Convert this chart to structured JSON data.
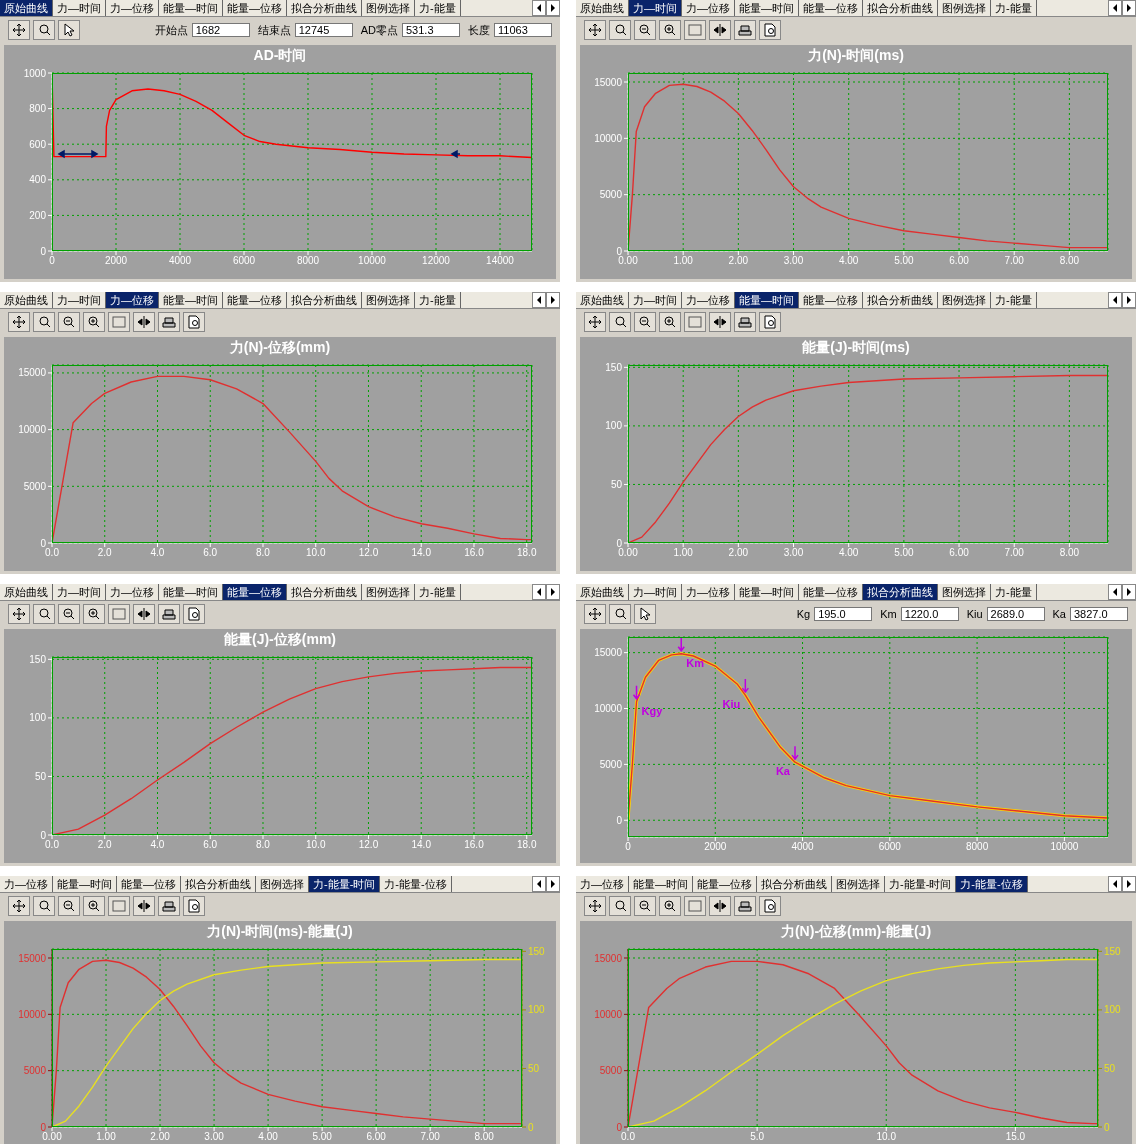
{
  "chart_data": [
    {
      "type": "line",
      "title": "AD-时间",
      "annotations": [
        "原始曲线",
        "力—时间",
        "力—位移",
        "能量—时间",
        "能量—位移",
        "拟合分析曲线",
        "图例选择",
        "力-能量",
        "开始点",
        "1682",
        "结束点",
        "12745",
        "AD零点",
        "531.3",
        "长度",
        "11063"
      ],
      "series": [
        {
          "color": "#ff0000",
          "x": [
            0,
            0,
            60,
            1682,
            1700,
            1800,
            2000,
            2500,
            3000,
            3500,
            4000,
            4500,
            5000,
            5500,
            6000,
            6500,
            7000,
            8000,
            9000,
            10000,
            11000,
            12000,
            13000,
            14000,
            15000
          ],
          "values": [
            0,
            1000,
            530,
            530,
            700,
            790,
            850,
            900,
            910,
            900,
            880,
            840,
            790,
            720,
            650,
            615,
            600,
            580,
            570,
            555,
            545,
            540,
            535,
            535,
            525
          ]
        }
      ],
      "xlim": [
        0,
        15000
      ],
      "xticks": [
        0,
        2000,
        4000,
        6000,
        8000,
        10000,
        12000,
        14000
      ],
      "ylim": [
        0,
        1000
      ],
      "yticks": [
        0,
        200,
        400,
        600,
        800,
        1000
      ],
      "grid": true
    },
    {
      "type": "line",
      "title": "力(N)-时间(ms)",
      "annotations": [
        "原始曲线",
        "力—时间",
        "力—位移",
        "能量—时间",
        "能量—位移",
        "拟合分析曲线",
        "图例选择",
        "力-能量"
      ],
      "series": [
        {
          "color": "#e03030",
          "x": [
            0,
            0.08,
            0.15,
            0.3,
            0.5,
            0.75,
            1.0,
            1.25,
            1.5,
            1.75,
            2.0,
            2.25,
            2.5,
            2.75,
            3.0,
            3.25,
            3.5,
            4.0,
            4.5,
            5.0,
            5.5,
            6.0,
            6.5,
            7.0,
            7.5,
            8.0,
            8.7
          ],
          "values": [
            0,
            5000,
            10600,
            12800,
            14000,
            14700,
            14800,
            14600,
            14100,
            13300,
            12200,
            10700,
            9000,
            7200,
            5700,
            4700,
            3900,
            2900,
            2300,
            1800,
            1500,
            1200,
            900,
            700,
            500,
            300,
            300
          ]
        }
      ],
      "xlim": [
        0,
        8.7
      ],
      "xticks": [
        {
          "value": 0,
          "label": "0.00"
        },
        {
          "value": 1,
          "label": "1.00"
        },
        {
          "value": 2,
          "label": "2.00"
        },
        {
          "value": 3,
          "label": "3.00"
        },
        {
          "value": 4,
          "label": "4.00"
        },
        {
          "value": 5,
          "label": "5.00"
        },
        {
          "value": 6,
          "label": "6.00"
        },
        {
          "value": 7,
          "label": "7.00"
        },
        {
          "value": 8,
          "label": "8.00"
        }
      ],
      "ylim": [
        0,
        15800
      ],
      "yticks": [
        0,
        5000,
        10000,
        15000
      ],
      "grid": true
    },
    {
      "type": "line",
      "title": "力(N)-位移(mm)",
      "annotations": [
        "原始曲线",
        "力—时间",
        "力—位移",
        "能量—时间",
        "能量—位移",
        "拟合分析曲线",
        "图例选择",
        "力-能量"
      ],
      "series": [
        {
          "color": "#e03030",
          "x": [
            0,
            0.8,
            1.5,
            2,
            3,
            4,
            5,
            6,
            7,
            8,
            9,
            10,
            10.5,
            11,
            12,
            13,
            14,
            15,
            16,
            17,
            18,
            18.2
          ],
          "values": [
            0,
            10600,
            12300,
            13200,
            14200,
            14700,
            14700,
            14400,
            13600,
            12300,
            9800,
            7200,
            5700,
            4600,
            3200,
            2300,
            1700,
            1300,
            800,
            400,
            300,
            300
          ]
        }
      ],
      "xlim": [
        0,
        18.2
      ],
      "xticks": [
        {
          "value": 0,
          "label": "0.0"
        },
        {
          "value": 2,
          "label": "2.0"
        },
        {
          "value": 4,
          "label": "4.0"
        },
        {
          "value": 6,
          "label": "6.0"
        },
        {
          "value": 8,
          "label": "8.0"
        },
        {
          "value": 10,
          "label": "10.0"
        },
        {
          "value": 12,
          "label": "12.0"
        },
        {
          "value": 14,
          "label": "14.0"
        },
        {
          "value": 16,
          "label": "16.0"
        },
        {
          "value": 18,
          "label": "18.0"
        }
      ],
      "ylim": [
        0,
        15700
      ],
      "yticks": [
        0,
        5000,
        10000,
        15000
      ],
      "grid": true
    },
    {
      "type": "line",
      "title": "能量(J)-时间(ms)",
      "annotations": [
        "原始曲线",
        "力—时间",
        "力—位移",
        "能量—时间",
        "能量—位移",
        "拟合分析曲线",
        "图例选择",
        "力-能量"
      ],
      "series": [
        {
          "color": "#e03030",
          "x": [
            0,
            0.25,
            0.5,
            0.75,
            1.0,
            1.25,
            1.5,
            1.75,
            2.0,
            2.25,
            2.5,
            3.0,
            3.5,
            4.0,
            5.0,
            6.0,
            7.0,
            8.0,
            8.7
          ],
          "values": [
            0,
            5,
            18,
            34,
            52,
            68,
            84,
            97,
            108,
            116,
            122,
            130,
            134,
            137,
            140,
            141,
            142,
            143,
            143
          ]
        }
      ],
      "xlim": [
        0,
        8.7
      ],
      "xticks": [
        {
          "value": 0,
          "label": "0.00"
        },
        {
          "value": 1,
          "label": "1.00"
        },
        {
          "value": 2,
          "label": "2.00"
        },
        {
          "value": 3,
          "label": "3.00"
        },
        {
          "value": 4,
          "label": "4.00"
        },
        {
          "value": 5,
          "label": "5.00"
        },
        {
          "value": 6,
          "label": "6.00"
        },
        {
          "value": 7,
          "label": "7.00"
        },
        {
          "value": 8,
          "label": "8.00"
        }
      ],
      "ylim": [
        0,
        152
      ],
      "yticks": [
        0,
        50,
        100,
        150
      ],
      "grid": true
    },
    {
      "type": "line",
      "title": "能量(J)-位移(mm)",
      "annotations": [
        "原始曲线",
        "力—时间",
        "力—位移",
        "能量—时间",
        "能量—位移",
        "拟合分析曲线",
        "图例选择",
        "力-能量"
      ],
      "series": [
        {
          "color": "#e03030",
          "x": [
            0,
            1,
            2,
            3,
            4,
            5,
            6,
            7,
            8,
            9,
            10,
            11,
            12,
            13,
            14,
            15,
            16,
            17,
            18,
            18.2
          ],
          "values": [
            0,
            5,
            17,
            31,
            47,
            62,
            78,
            92,
            105,
            116,
            125,
            131,
            135,
            138,
            140,
            141,
            142,
            143,
            143,
            143
          ]
        }
      ],
      "xlim": [
        0,
        18.2
      ],
      "xticks": [
        {
          "value": 0,
          "label": "0.0"
        },
        {
          "value": 2,
          "label": "2.0"
        },
        {
          "value": 4,
          "label": "4.0"
        },
        {
          "value": 6,
          "label": "6.0"
        },
        {
          "value": 8,
          "label": "8.0"
        },
        {
          "value": 10,
          "label": "10.0"
        },
        {
          "value": 12,
          "label": "12.0"
        },
        {
          "value": 14,
          "label": "14.0"
        },
        {
          "value": 16,
          "label": "16.0"
        },
        {
          "value": 18,
          "label": "18.0"
        }
      ],
      "ylim": [
        0,
        152
      ],
      "yticks": [
        0,
        50,
        100,
        150
      ],
      "grid": true
    },
    {
      "type": "line",
      "annotations": [
        "原始曲线",
        "力—时间",
        "力—位移",
        "能量—时间",
        "能量—位移",
        "拟合分析曲线",
        "图例选择",
        "力-能量",
        "Kg",
        "195.0",
        "Km",
        "1220.0",
        "Kiu",
        "2689.0",
        "Ka",
        "3827.0",
        {
          "text": "Kgy",
          "x": 195,
          "y": 10600
        },
        {
          "text": "Km",
          "x": 1220,
          "y": 14900
        },
        {
          "text": "Kiu",
          "x": 2689,
          "y": 11200
        },
        {
          "text": "Ka",
          "x": 3827,
          "y": 5200
        }
      ],
      "series": [
        {
          "color": "#ffd700",
          "x": [
            0,
            100,
            195,
            400,
            700,
            1000,
            1220,
            1500,
            2000,
            2500,
            2689,
            3000,
            3500,
            3827,
            4500,
            5000,
            6000,
            7000,
            8000,
            9000,
            10000,
            11000
          ],
          "values": [
            0,
            5000,
            10600,
            12800,
            14300,
            14800,
            14900,
            14700,
            13800,
            12200,
            11200,
            9200,
            6500,
            5200,
            3800,
            3100,
            2200,
            1700,
            1200,
            800,
            400,
            200
          ]
        },
        {
          "color": "#e03030",
          "x": [
            0,
            100,
            195,
            400,
            700,
            1000,
            1220,
            1500,
            2000,
            2500,
            2689,
            3000,
            3500,
            3827,
            4500,
            5000,
            6000,
            7000,
            8000,
            9000,
            10000,
            11000
          ],
          "values": [
            0,
            5000,
            10600,
            12800,
            14300,
            14800,
            14900,
            14700,
            13800,
            12200,
            11200,
            9200,
            6500,
            5200,
            3800,
            3100,
            2200,
            1700,
            1200,
            800,
            400,
            200
          ]
        }
      ],
      "xlim": [
        0,
        11000
      ],
      "xticks": [
        0,
        2000,
        4000,
        6000,
        8000,
        10000
      ],
      "ylim": [
        -1500,
        16400
      ],
      "yticks": [
        0,
        5000,
        10000,
        15000
      ],
      "grid": true
    },
    {
      "type": "line",
      "title": "力(N)-时间(ms)-能量(J)",
      "annotations": [
        "力—位移",
        "能量—时间",
        "能量—位移",
        "拟合分析曲线",
        "图例选择",
        "力-能量-时间",
        "力-能量-位移"
      ],
      "series": [
        {
          "color": "#e03030",
          "x": [
            0,
            0.08,
            0.15,
            0.3,
            0.5,
            0.75,
            1.0,
            1.25,
            1.5,
            1.75,
            2.0,
            2.25,
            2.5,
            2.75,
            3.0,
            3.25,
            3.5,
            4.0,
            4.5,
            5.0,
            5.5,
            6.0,
            6.5,
            7.0,
            7.5,
            8.0,
            8.7
          ],
          "values": [
            0,
            5000,
            10600,
            12800,
            14000,
            14700,
            14800,
            14600,
            14100,
            13300,
            12200,
            10700,
            9000,
            7200,
            5700,
            4700,
            3900,
            2900,
            2300,
            1800,
            1500,
            1200,
            900,
            700,
            500,
            300,
            300
          ]
        },
        {
          "color": "#e8e020",
          "axis": "y2",
          "x": [
            0,
            0.25,
            0.5,
            0.75,
            1.0,
            1.25,
            1.5,
            1.75,
            2.0,
            2.25,
            2.5,
            3.0,
            3.5,
            4.0,
            5.0,
            6.0,
            7.0,
            8.0,
            8.7
          ],
          "values": [
            0,
            5,
            18,
            34,
            52,
            68,
            84,
            97,
            108,
            116,
            122,
            130,
            134,
            137,
            140,
            141,
            142,
            143,
            143
          ]
        }
      ],
      "xlim": [
        0,
        8.7
      ],
      "xticks": [
        {
          "value": 0,
          "label": "0.00"
        },
        {
          "value": 1,
          "label": "1.00"
        },
        {
          "value": 2,
          "label": "2.00"
        },
        {
          "value": 3,
          "label": "3.00"
        },
        {
          "value": 4,
          "label": "4.00"
        },
        {
          "value": 5,
          "label": "5.00"
        },
        {
          "value": 6,
          "label": "6.00"
        },
        {
          "value": 7,
          "label": "7.00"
        },
        {
          "value": 8,
          "label": "8.00"
        }
      ],
      "ylim": [
        0,
        15800
      ],
      "yticks": [
        0,
        5000,
        10000,
        15000
      ],
      "y2lim": [
        0,
        152
      ],
      "y2ticks": [
        0,
        50,
        100,
        150
      ],
      "grid": true
    },
    {
      "type": "line",
      "title": "力(N)-位移(mm)-能量(J)",
      "annotations": [
        "力—位移",
        "能量—时间",
        "能量—位移",
        "拟合分析曲线",
        "图例选择",
        "力-能量-时间",
        "力-能量-位移"
      ],
      "series": [
        {
          "color": "#e03030",
          "x": [
            0,
            0.8,
            1.5,
            2,
            3,
            4,
            5,
            6,
            7,
            8,
            9,
            10,
            10.5,
            11,
            12,
            13,
            14,
            15,
            16,
            17,
            18,
            18.2
          ],
          "values": [
            0,
            10600,
            12300,
            13200,
            14200,
            14700,
            14700,
            14400,
            13600,
            12300,
            9800,
            7200,
            5700,
            4600,
            3200,
            2300,
            1700,
            1300,
            800,
            400,
            300,
            300
          ]
        },
        {
          "color": "#e8e020",
          "axis": "y2",
          "x": [
            0,
            1,
            2,
            3,
            4,
            5,
            6,
            7,
            8,
            9,
            10,
            11,
            12,
            13,
            14,
            15,
            16,
            17,
            18,
            18.2
          ],
          "values": [
            0,
            5,
            17,
            31,
            47,
            62,
            78,
            92,
            105,
            116,
            125,
            131,
            135,
            138,
            140,
            141,
            142,
            143,
            143,
            143
          ]
        }
      ],
      "xlim": [
        0,
        18.2
      ],
      "xticks": [
        {
          "value": 0,
          "label": "0.0"
        },
        {
          "value": 5,
          "label": "5.0"
        },
        {
          "value": 10,
          "label": "10.0"
        },
        {
          "value": 15,
          "label": "15.0"
        }
      ],
      "ylim": [
        0,
        15800
      ],
      "yticks": [
        0,
        5000,
        10000,
        15000
      ],
      "y2lim": [
        0,
        152
      ],
      "y2ticks": [
        0,
        50,
        100,
        150
      ],
      "grid": true
    }
  ]
}
